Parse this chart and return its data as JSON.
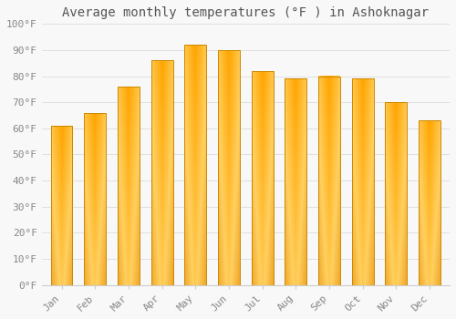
{
  "title": "Average monthly temperatures (°F ) in Ashoknagar",
  "months": [
    "Jan",
    "Feb",
    "Mar",
    "Apr",
    "May",
    "Jun",
    "Jul",
    "Aug",
    "Sep",
    "Oct",
    "Nov",
    "Dec"
  ],
  "values": [
    61,
    66,
    76,
    86,
    92,
    90,
    82,
    79,
    80,
    79,
    70,
    63
  ],
  "bar_color_main": "#FFA500",
  "bar_color_light": "#FFD060",
  "bar_edge_color": "#CC8800",
  "ylim": [
    0,
    100
  ],
  "yticks": [
    0,
    10,
    20,
    30,
    40,
    50,
    60,
    70,
    80,
    90,
    100
  ],
  "ytick_labels": [
    "0°F",
    "10°F",
    "20°F",
    "30°F",
    "40°F",
    "50°F",
    "60°F",
    "70°F",
    "80°F",
    "90°F",
    "100°F"
  ],
  "background_color": "#F8F8F8",
  "grid_color": "#E0E0E0",
  "title_fontsize": 10,
  "tick_fontsize": 8,
  "font_family": "monospace",
  "tick_color": "#888888",
  "title_color": "#555555"
}
